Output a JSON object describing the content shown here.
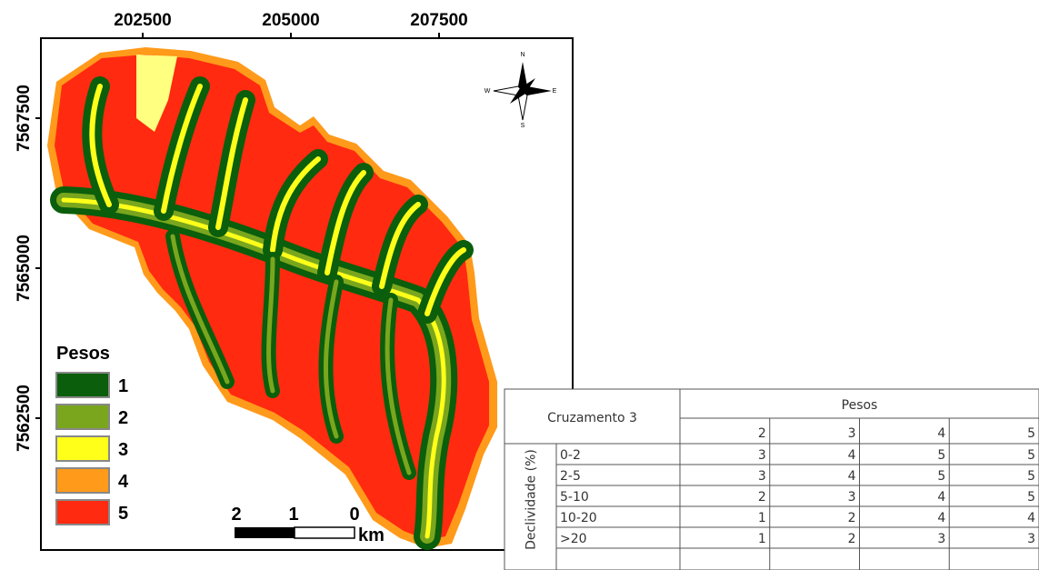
{
  "map": {
    "x_tick_labels": [
      "202500",
      "205000",
      "207500"
    ],
    "y_tick_labels": [
      "7567500",
      "7565000",
      "7562500"
    ],
    "legend": {
      "title": "Pesos",
      "items": [
        {
          "label": "1",
          "color": "#0b5e0b"
        },
        {
          "label": "2",
          "color": "#7aa61e"
        },
        {
          "label": "3",
          "color": "#ffff1a"
        },
        {
          "label": "4",
          "color": "#ff9a1a"
        },
        {
          "label": "5",
          "color": "#ff2a10"
        }
      ]
    },
    "scale_bar": {
      "labels": [
        "2",
        "1",
        "0"
      ],
      "unit": "km"
    },
    "compass": {
      "n": "N",
      "s": "S",
      "e": "E",
      "w": "W"
    }
  },
  "table": {
    "title": "Cruzamento 3",
    "column_group": "Pesos",
    "columns": [
      "2",
      "3",
      "4",
      "5"
    ],
    "row_group": "Declividade (%)",
    "rows": [
      {
        "label": "0-2",
        "cells": [
          "3",
          "4",
          "5",
          "5"
        ]
      },
      {
        "label": "2-5",
        "cells": [
          "3",
          "4",
          "5",
          "5"
        ]
      },
      {
        "label": "5-10",
        "cells": [
          "2",
          "3",
          "4",
          "5"
        ]
      },
      {
        "label": "10-20",
        "cells": [
          "1",
          "2",
          "4",
          "4"
        ]
      },
      {
        "label": ">20",
        "cells": [
          "1",
          "2",
          "3",
          "3"
        ]
      }
    ]
  }
}
